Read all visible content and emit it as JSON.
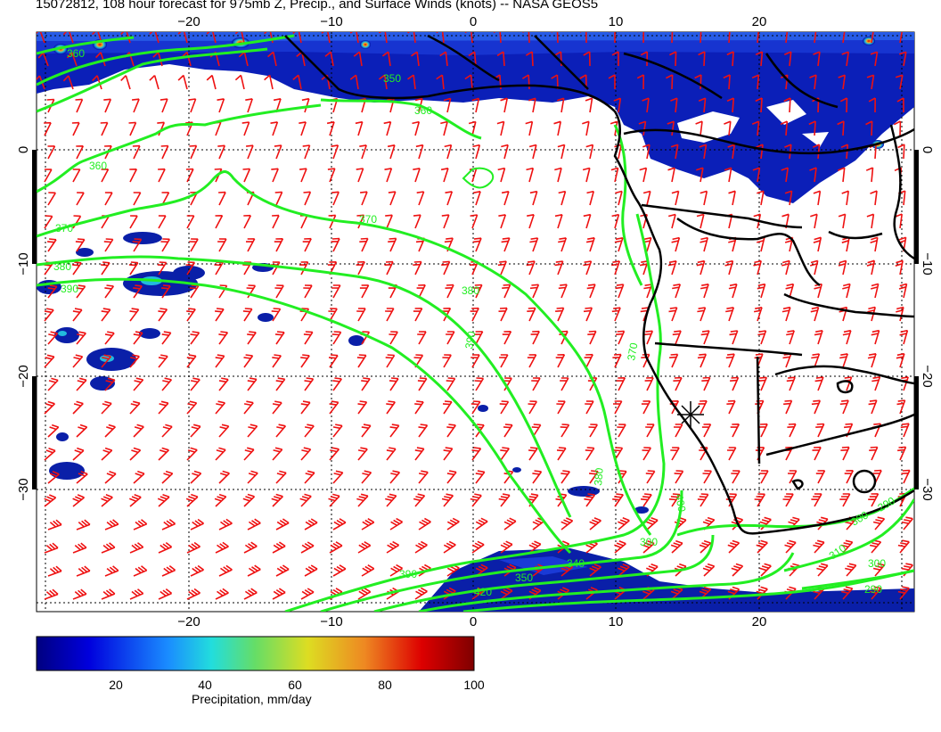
{
  "title": "15072812, 108 hour forecast for 975mb Z, Precip., and Surface Winds (knots) -- NASA GEOS5",
  "map": {
    "top_lon_ticks": [
      "−20",
      "−10",
      "0",
      "10",
      "20"
    ],
    "bottom_lon_ticks": [
      "−20",
      "−10",
      "0",
      "10",
      "20"
    ],
    "left_lat_ticks": [
      "0",
      "−10",
      "−20",
      "−30"
    ],
    "right_lat_ticks": [
      "0",
      "−10",
      "−20",
      "−30"
    ],
    "contour_labels": [
      "360",
      "350",
      "360",
      "360",
      "370",
      "370",
      "380",
      "380",
      "390",
      "390",
      "370",
      "380",
      "400",
      "390",
      "340",
      "300",
      "310",
      "300",
      "300",
      "290",
      "290",
      "420",
      "350"
    ],
    "colors": {
      "contour": "#22ee22",
      "wind_barb": "#ee1111",
      "coastline": "#000000",
      "precip_low": "#000080",
      "precip_high": "#7f0000"
    }
  },
  "colorbar": {
    "ticks": [
      "20",
      "40",
      "60",
      "80",
      "100"
    ],
    "label": "Precipitation, mm/day"
  }
}
